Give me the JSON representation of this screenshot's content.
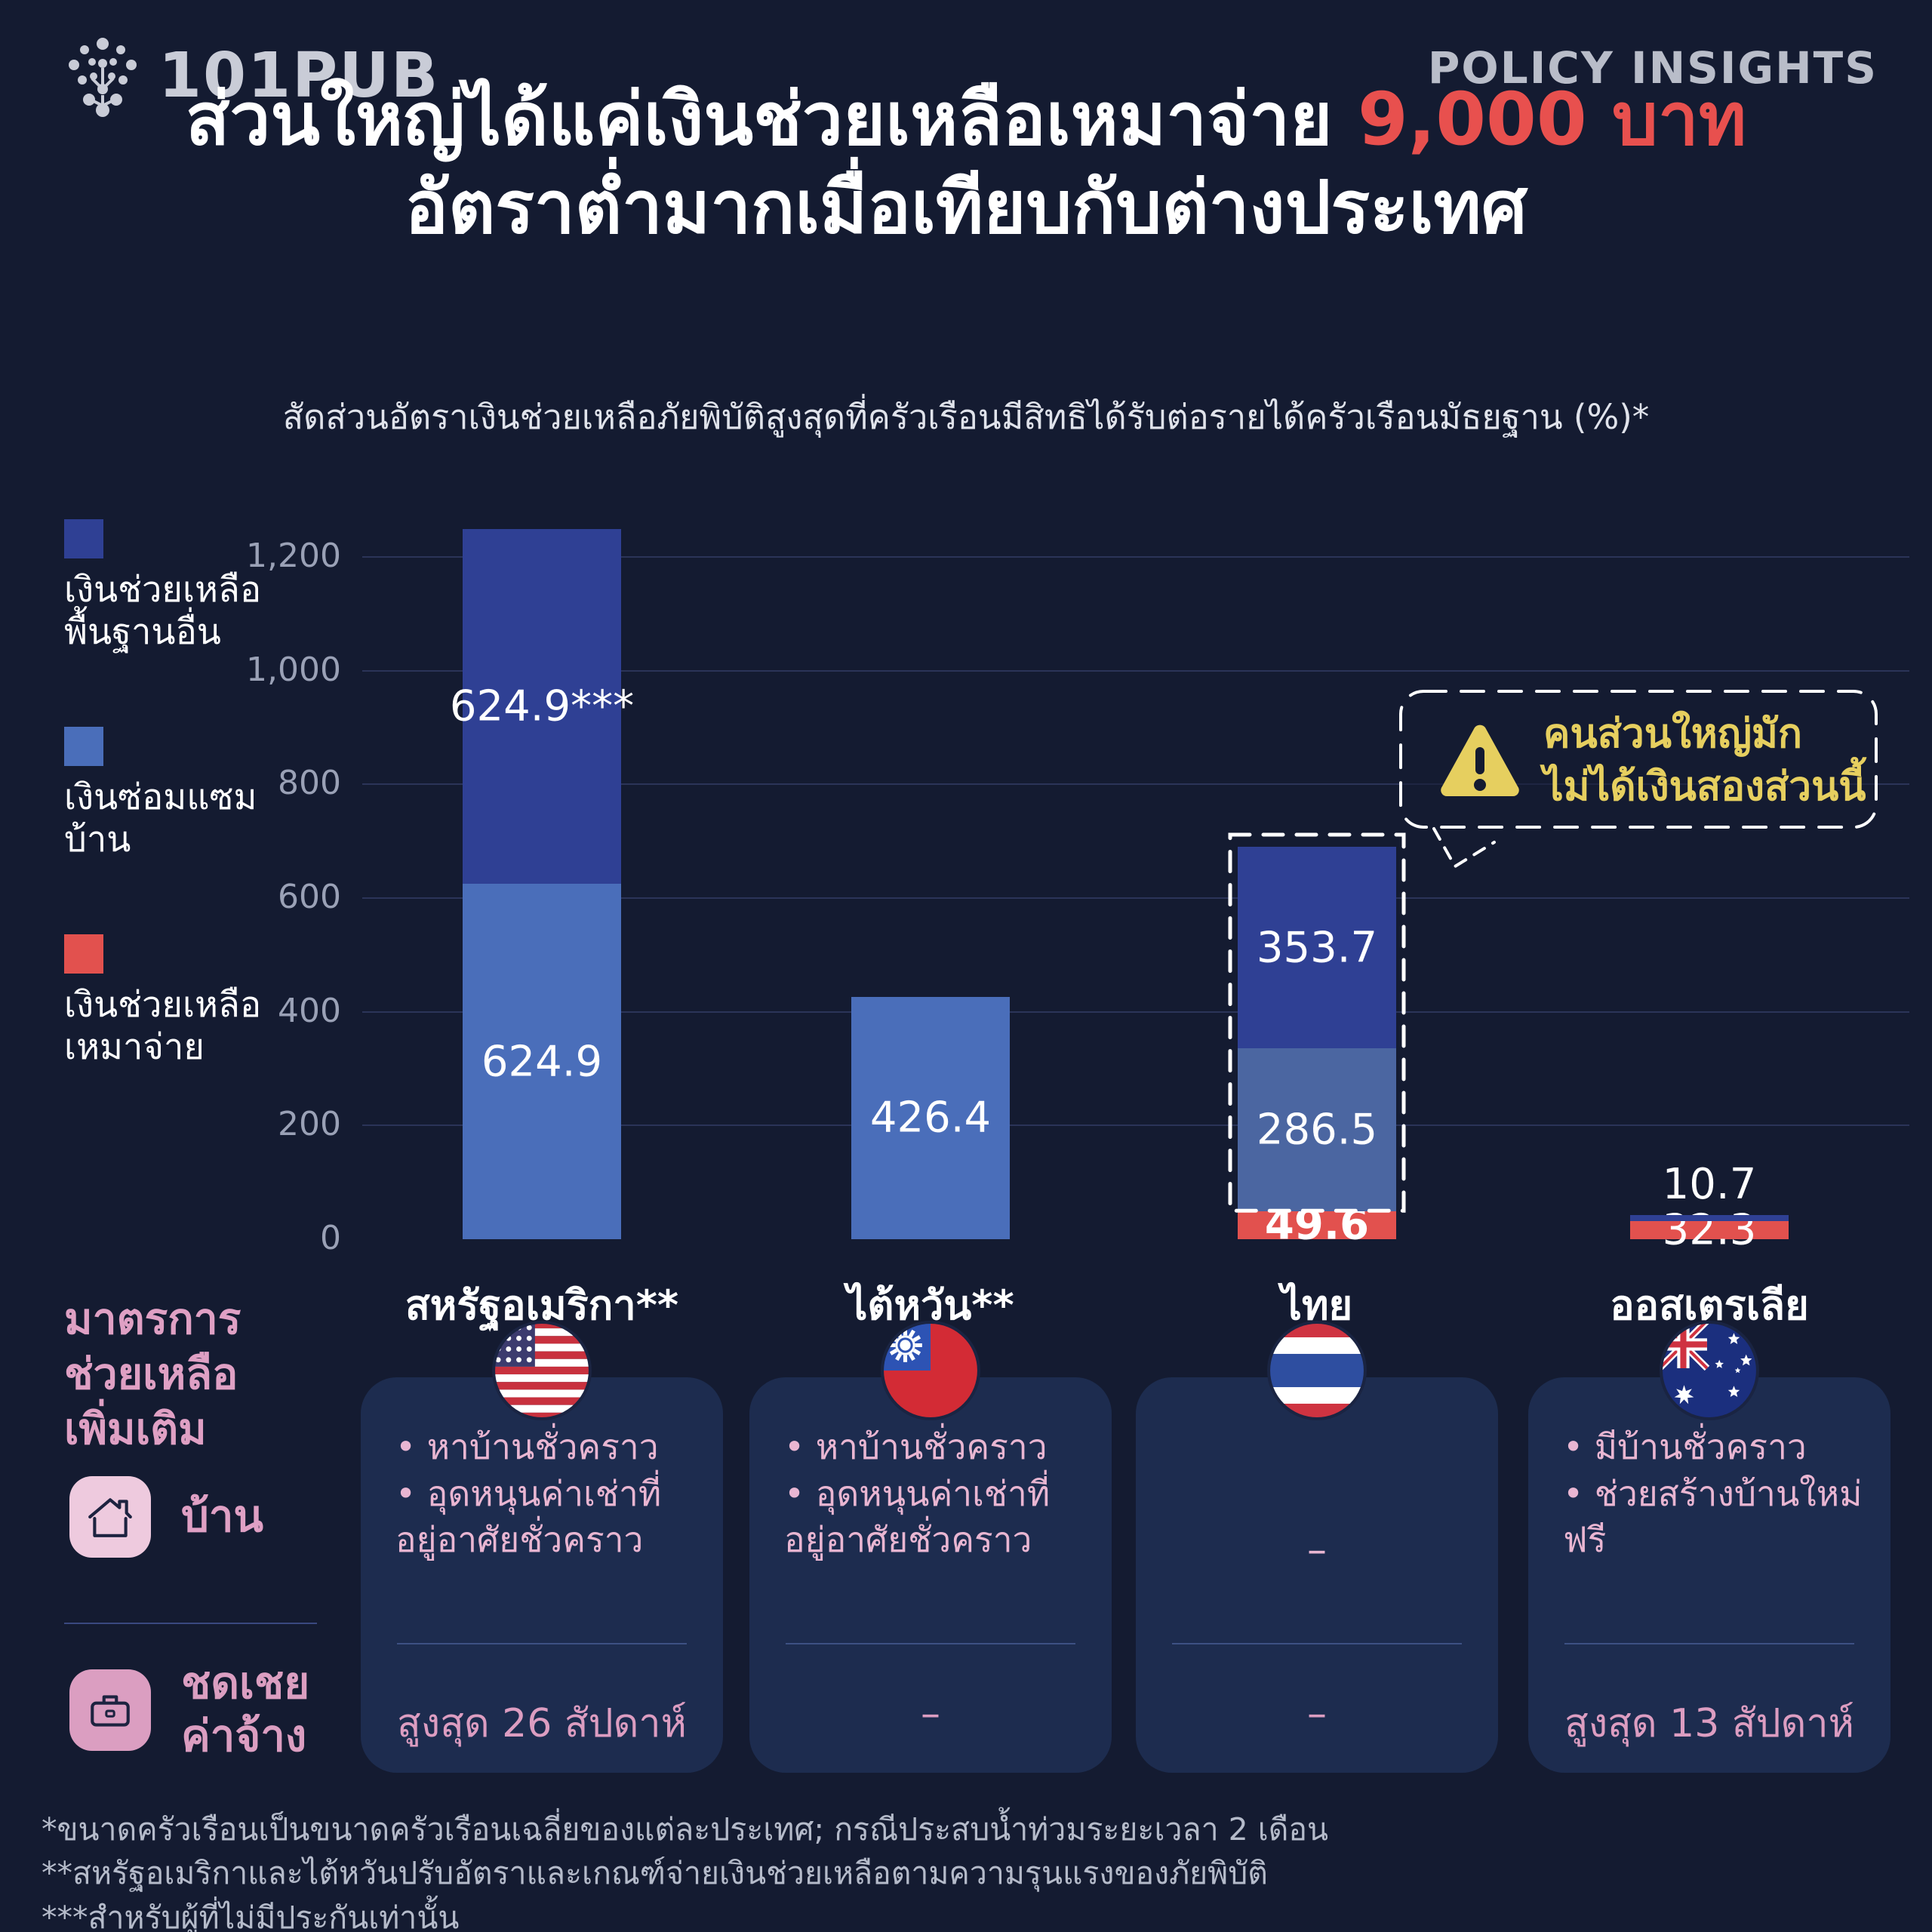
{
  "brand": {
    "logo_text": "101PUB",
    "tagline": "POLICY INSIGHTS"
  },
  "title": {
    "line1_white": "ส่วนใหญ่ได้แค่เงินช่วยเหลือเหมาจ่าย ",
    "line1_red": "9,000 บาท",
    "line2": "อัตราต่ำมากเมื่อเทียบกับต่างประเทศ"
  },
  "subtitle": "สัดส่วนอัตราเงินช่วยเหลือภัยพิบัติสูงสุดที่ครัวเรือนมีสิทธิได้รับต่อรายได้ครัวเรือนมัธยฐาน (%)*",
  "colors": {
    "background": "#141b31",
    "basic_aid_blue": "#2f4094",
    "repair_blue": "#4a6eba",
    "repair_blue_muted": "#4b66a1",
    "lumpsum_red": "#e2514e",
    "title_red": "#e8504e",
    "warning_yellow": "#e6cf5f",
    "pink_text": "#dfa0c4",
    "card_bg": "#1d2c4f"
  },
  "legend": {
    "items": [
      {
        "line1": "เงินช่วยเหลือ",
        "line2": "พื้นฐานอื่น",
        "color": "#2f4094"
      },
      {
        "line1": "เงินซ่อมแซม",
        "line2": "บ้าน",
        "color": "#4a6eba"
      },
      {
        "line1": "เงินช่วยเหลือ",
        "line2": "เหมาจ่าย",
        "color": "#e2514e"
      }
    ]
  },
  "chart_data": {
    "type": "bar",
    "stacked": true,
    "title": "สัดส่วนอัตราเงินช่วยเหลือภัยพิบัติสูงสุดที่ครัวเรือนมีสิทธิได้รับต่อรายได้ครัวเรือนมัธยฐาน (%)",
    "ylim": [
      0,
      1200
    ],
    "yticks": [
      0,
      200,
      400,
      600,
      800,
      1000,
      1200
    ],
    "ytick_labels": [
      "0",
      "200",
      "400",
      "600",
      "800",
      "1,000",
      "1,200"
    ],
    "grid": "horizontal",
    "legend_position": "left",
    "categories": [
      "สหรัฐอเมริกา**",
      "ไต้หวัน**",
      "ไทย",
      "ออสเตรเลีย"
    ],
    "series": [
      {
        "name": "เงินช่วยเหลือพื้นฐานอื่น",
        "color": "#2f4094",
        "values": [
          624.9,
          0,
          353.7,
          10.7
        ]
      },
      {
        "name": "เงินซ่อมแซมบ้าน",
        "color": "#4a6eba",
        "values": [
          624.9,
          426.4,
          286.5,
          0
        ]
      },
      {
        "name": "เงินช่วยเหลือเหมาจ่าย",
        "color": "#e2514e",
        "values": [
          0,
          0,
          49.6,
          32.3
        ]
      }
    ],
    "bars": [
      {
        "category": "สหรัฐอเมริกา**",
        "center": 238,
        "segments": [
          {
            "color": "#4a6eba",
            "value": 624.9,
            "label": "624.9"
          },
          {
            "color": "#2f4094",
            "value": 624.9,
            "label": "624.9***"
          }
        ]
      },
      {
        "category": "ไต้หวัน**",
        "center": 753,
        "segments": [
          {
            "color": "#4a6eba",
            "value": 426.4,
            "label": "426.4"
          }
        ]
      },
      {
        "category": "ไทย",
        "center": 1265,
        "dashed_highlight_from_segment": 1,
        "segments": [
          {
            "color": "#e2514e",
            "value": 49.6,
            "label": "49.6",
            "bold": true
          },
          {
            "color": "#4b66a1",
            "value": 286.5,
            "label": "286.5"
          },
          {
            "color": "#2f4094",
            "value": 353.7,
            "label": "353.7"
          }
        ]
      },
      {
        "category": "ออสเตรเลีย",
        "center": 1785,
        "segments": [
          {
            "color": "#e2514e",
            "value": 32.3,
            "label": "32.3"
          },
          {
            "color": "#2f4094",
            "value": 10.7,
            "label": "10.7",
            "label_above": true
          }
        ]
      }
    ]
  },
  "callout": {
    "line1": "คนส่วนใหญ่มัก",
    "line2_bold": "ไม่ได้",
    "line2_rest": "เงินสองส่วนนี้"
  },
  "measures": {
    "heading_lines": [
      "มาตรการ",
      "ช่วยเหลือ",
      "เพิ่มเติม"
    ],
    "rows": {
      "house": {
        "label": "บ้าน",
        "icon": "house-icon"
      },
      "wage": {
        "line1": "ชดเชย",
        "line2": "ค่าจ้าง",
        "icon": "briefcase-icon"
      }
    },
    "cards": [
      {
        "country": "สหรัฐอเมริกา",
        "flag": "us",
        "house_items": [
          "หาบ้านชั่วคราว",
          "อุดหนุนค่าเช่าที่อยู่อาศัยชั่วคราว"
        ],
        "wage": "สูงสุด 26 สัปดาห์"
      },
      {
        "country": "ไต้หวัน",
        "flag": "tw",
        "house_items": [
          "หาบ้านชั่วคราว",
          "อุดหนุนค่าเช่าที่อยู่อาศัยชั่วคราว"
        ],
        "wage": "–"
      },
      {
        "country": "ไทย",
        "flag": "th",
        "house_items": [],
        "house_empty": "–",
        "wage": "–"
      },
      {
        "country": "ออสเตรเลีย",
        "flag": "au",
        "house_items": [
          "มีบ้านชั่วคราว",
          "ช่วยสร้างบ้านใหม่ฟรี"
        ],
        "wage": "สูงสุด 13 สัปดาห์"
      }
    ]
  },
  "footnotes": [
    "*ขนาดครัวเรือนเป็นขนาดครัวเรือนเฉลี่ยของแต่ละประเทศ; กรณีประสบน้ำท่วมระยะเวลา 2 เดือน",
    "**สหรัฐอเมริกาและไต้หวันปรับอัตราและเกณฑ์จ่ายเงินช่วยเหลือตามความรุนแรงของภัยพิบัติ",
    "***สำหรับผู้ที่ไม่มีประกันเท่านั้น"
  ]
}
